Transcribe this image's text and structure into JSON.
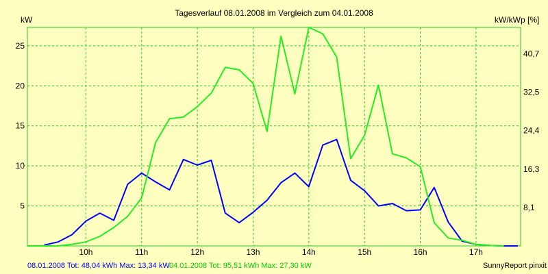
{
  "chart_data": {
    "type": "line",
    "title": "Tagesverlauf 08.01.2008 im Vergleich zum 04.01.2008",
    "ylabel_left": "kW",
    "ylabel_right": "kW/kWp [%]",
    "x_tick_labels": [
      "10h",
      "11h",
      "12h",
      "13h",
      "14h",
      "15h",
      "16h",
      "17h"
    ],
    "x_ticks": [
      10,
      11,
      12,
      13,
      14,
      15,
      16,
      17
    ],
    "xlim": [
      8.95,
      17.8
    ],
    "ylim": [
      0,
      27.3
    ],
    "y_left_ticks": [
      5,
      10,
      15,
      20,
      25
    ],
    "y_left_tick_labels": [
      "5",
      "10",
      "15",
      "20",
      "25"
    ],
    "y_right_ticks": [
      4.8,
      9.6,
      14.4,
      19.2,
      24.0
    ],
    "y_right_tick_labels": [
      "8,1",
      "16,3",
      "24,4",
      "32,5",
      "40,7"
    ],
    "grid": true,
    "series": [
      {
        "name": "08.01.2008",
        "color": "#0000ff",
        "x": [
          9.25,
          9.5,
          9.75,
          10.0,
          10.25,
          10.5,
          10.75,
          11.0,
          11.25,
          11.5,
          11.75,
          12.0,
          12.25,
          12.5,
          12.75,
          13.0,
          13.25,
          13.5,
          13.75,
          14.0,
          14.25,
          14.5,
          14.75,
          15.0,
          15.25,
          15.5,
          15.75,
          16.0,
          16.25,
          16.5,
          16.75,
          17.0,
          17.25,
          17.5,
          17.75
        ],
        "values": [
          0.1,
          0.5,
          1.4,
          3.1,
          4.1,
          3.2,
          7.7,
          9.1,
          8.0,
          7.0,
          10.8,
          10.1,
          10.7,
          4.1,
          2.9,
          4.2,
          5.7,
          7.9,
          9.1,
          7.4,
          12.6,
          13.3,
          8.2,
          6.9,
          5.0,
          5.3,
          4.4,
          4.5,
          7.3,
          3.0,
          0.6,
          0.2,
          0.05,
          0.0,
          0.0
        ]
      },
      {
        "name": "04.01.2008",
        "color": "#22ee22",
        "x": [
          8.95,
          9.25,
          9.5,
          9.75,
          10.0,
          10.25,
          10.5,
          10.75,
          11.0,
          11.25,
          11.5,
          11.75,
          12.0,
          12.25,
          12.5,
          12.75,
          13.0,
          13.25,
          13.5,
          13.75,
          14.0,
          14.25,
          14.5,
          14.75,
          15.0,
          15.25,
          15.5,
          15.75,
          16.0,
          16.25,
          16.5,
          16.75,
          17.0,
          17.25,
          17.5
        ],
        "values": [
          0.0,
          0.0,
          0.0,
          0.2,
          0.5,
          1.2,
          2.3,
          3.7,
          6.0,
          12.9,
          15.9,
          16.1,
          17.4,
          19.1,
          22.3,
          22.0,
          20.3,
          14.3,
          26.2,
          19.0,
          27.3,
          26.5,
          23.6,
          10.9,
          13.8,
          20.1,
          11.5,
          11.0,
          9.9,
          2.9,
          1.0,
          0.7,
          0.2,
          0.05,
          0.0
        ]
      }
    ]
  },
  "footer": {
    "blue_summary": "08.01.2008 Tot: 48,04 kWh Max: 13,34 kW",
    "green_summary": "04.01.2008 Tot: 95,51 kWh Max: 27,30 kW",
    "credit": "SunnyReport pinxit"
  }
}
